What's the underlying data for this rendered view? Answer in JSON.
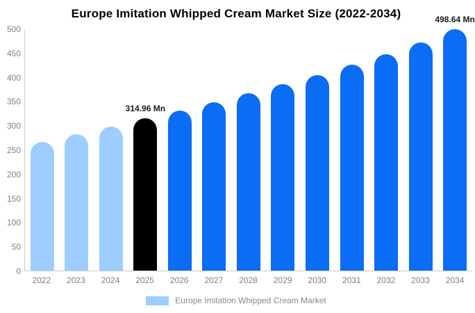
{
  "title": "Europe Imitation Whipped Cream Market Size (2022-2034)",
  "legend": {
    "label": "Europe Imitation Whipped Cream Market"
  },
  "colors": {
    "historical": "#9DCEFF",
    "base_year": "#000000",
    "forecast": "#0B6CF6",
    "axis_line": "#CCCCCC",
    "tick_text": "#808080",
    "data_label_text": "#1A1A1A"
  },
  "chart_data": {
    "type": "bar",
    "title": "Europe Imitation Whipped Cream Market Size (2022-2034)",
    "categories": [
      "2022",
      "2023",
      "2024",
      "2025",
      "2026",
      "2027",
      "2028",
      "2029",
      "2030",
      "2031",
      "2032",
      "2033",
      "2034"
    ],
    "values": [
      266,
      281,
      298,
      314.96,
      331,
      348,
      366,
      385,
      404,
      425,
      447,
      471,
      498.64
    ],
    "bar_roles": [
      "historical",
      "historical",
      "historical",
      "base",
      "forecast",
      "forecast",
      "forecast",
      "forecast",
      "forecast",
      "forecast",
      "forecast",
      "forecast",
      "forecast"
    ],
    "bar_labels": [
      "",
      "",
      "",
      "314.96 Mn",
      "",
      "",
      "",
      "",
      "",
      "",
      "",
      "",
      "498.64 Mn"
    ],
    "xlabel": "",
    "ylabel": "",
    "ylim": [
      0,
      500
    ],
    "yticks": [
      0,
      50,
      100,
      150,
      200,
      250,
      300,
      350,
      400,
      450,
      500
    ],
    "grid": false,
    "legend_position": "bottom",
    "legend_entries": [
      "Europe Imitation Whipped Cream Market"
    ]
  }
}
